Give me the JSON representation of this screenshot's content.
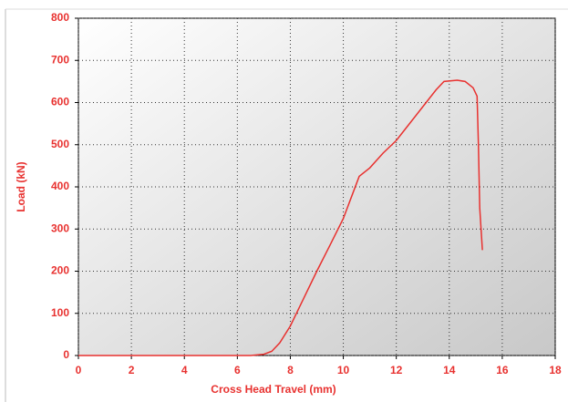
{
  "chart_data": {
    "type": "line",
    "x_label": "Cross Head Travel (mm)",
    "y_label": "Load (kN)",
    "xlim": [
      0,
      18
    ],
    "xticks": [
      0,
      2,
      4,
      6,
      8,
      10,
      12,
      14,
      16,
      18
    ],
    "ylim": [
      0,
      800
    ],
    "yticks": [
      0,
      100,
      200,
      300,
      400,
      500,
      600,
      700,
      800
    ],
    "grid": true,
    "series": [
      {
        "name": "Load",
        "color": "#e8312f",
        "x": [
          0,
          2,
          4,
          6,
          6.5,
          7,
          7.3,
          7.6,
          8,
          8.5,
          9,
          9.5,
          10,
          10.3,
          10.6,
          11,
          11.5,
          12,
          12.5,
          13,
          13.5,
          13.8,
          14.3,
          14.6,
          14.9,
          15.05,
          15.1,
          15.15,
          15.25
        ],
        "values": [
          0,
          0,
          0,
          0,
          0,
          3,
          10,
          30,
          70,
          135,
          200,
          262,
          325,
          375,
          425,
          445,
          480,
          510,
          550,
          590,
          630,
          650,
          653,
          650,
          635,
          615,
          500,
          350,
          250
        ]
      }
    ]
  }
}
